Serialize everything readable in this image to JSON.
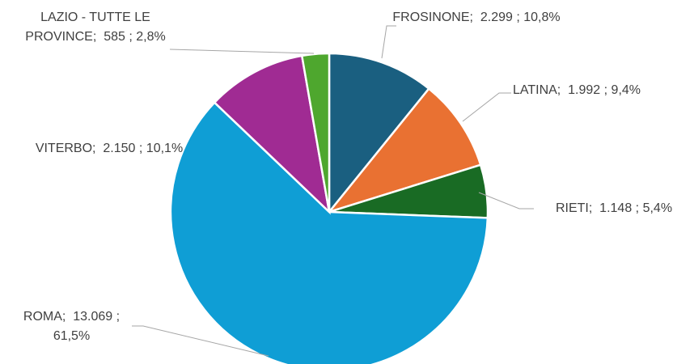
{
  "chart_data": {
    "type": "pie",
    "categories": [
      "FROSINONE",
      "LATINA",
      "RIETI",
      "ROMA",
      "VITERBO",
      "LAZIO - TUTTE LE PROVINCE"
    ],
    "values": [
      2299,
      1992,
      1148,
      13069,
      2150,
      585
    ],
    "value_labels": [
      "2.299",
      "1.992",
      "1.148",
      "13.069",
      "2.150",
      "585"
    ],
    "percentages": [
      10.8,
      9.4,
      5.4,
      61.5,
      10.1,
      2.8
    ],
    "percentage_labels": [
      "10,8%",
      "9,4%",
      "5,4%",
      "61,5%",
      "10,1%",
      "2,8%"
    ],
    "separator": ";",
    "colors": [
      "#1a5f80",
      "#e97132",
      "#196b24",
      "#0f9ed5",
      "#a02b93",
      "#4ea72e"
    ]
  }
}
